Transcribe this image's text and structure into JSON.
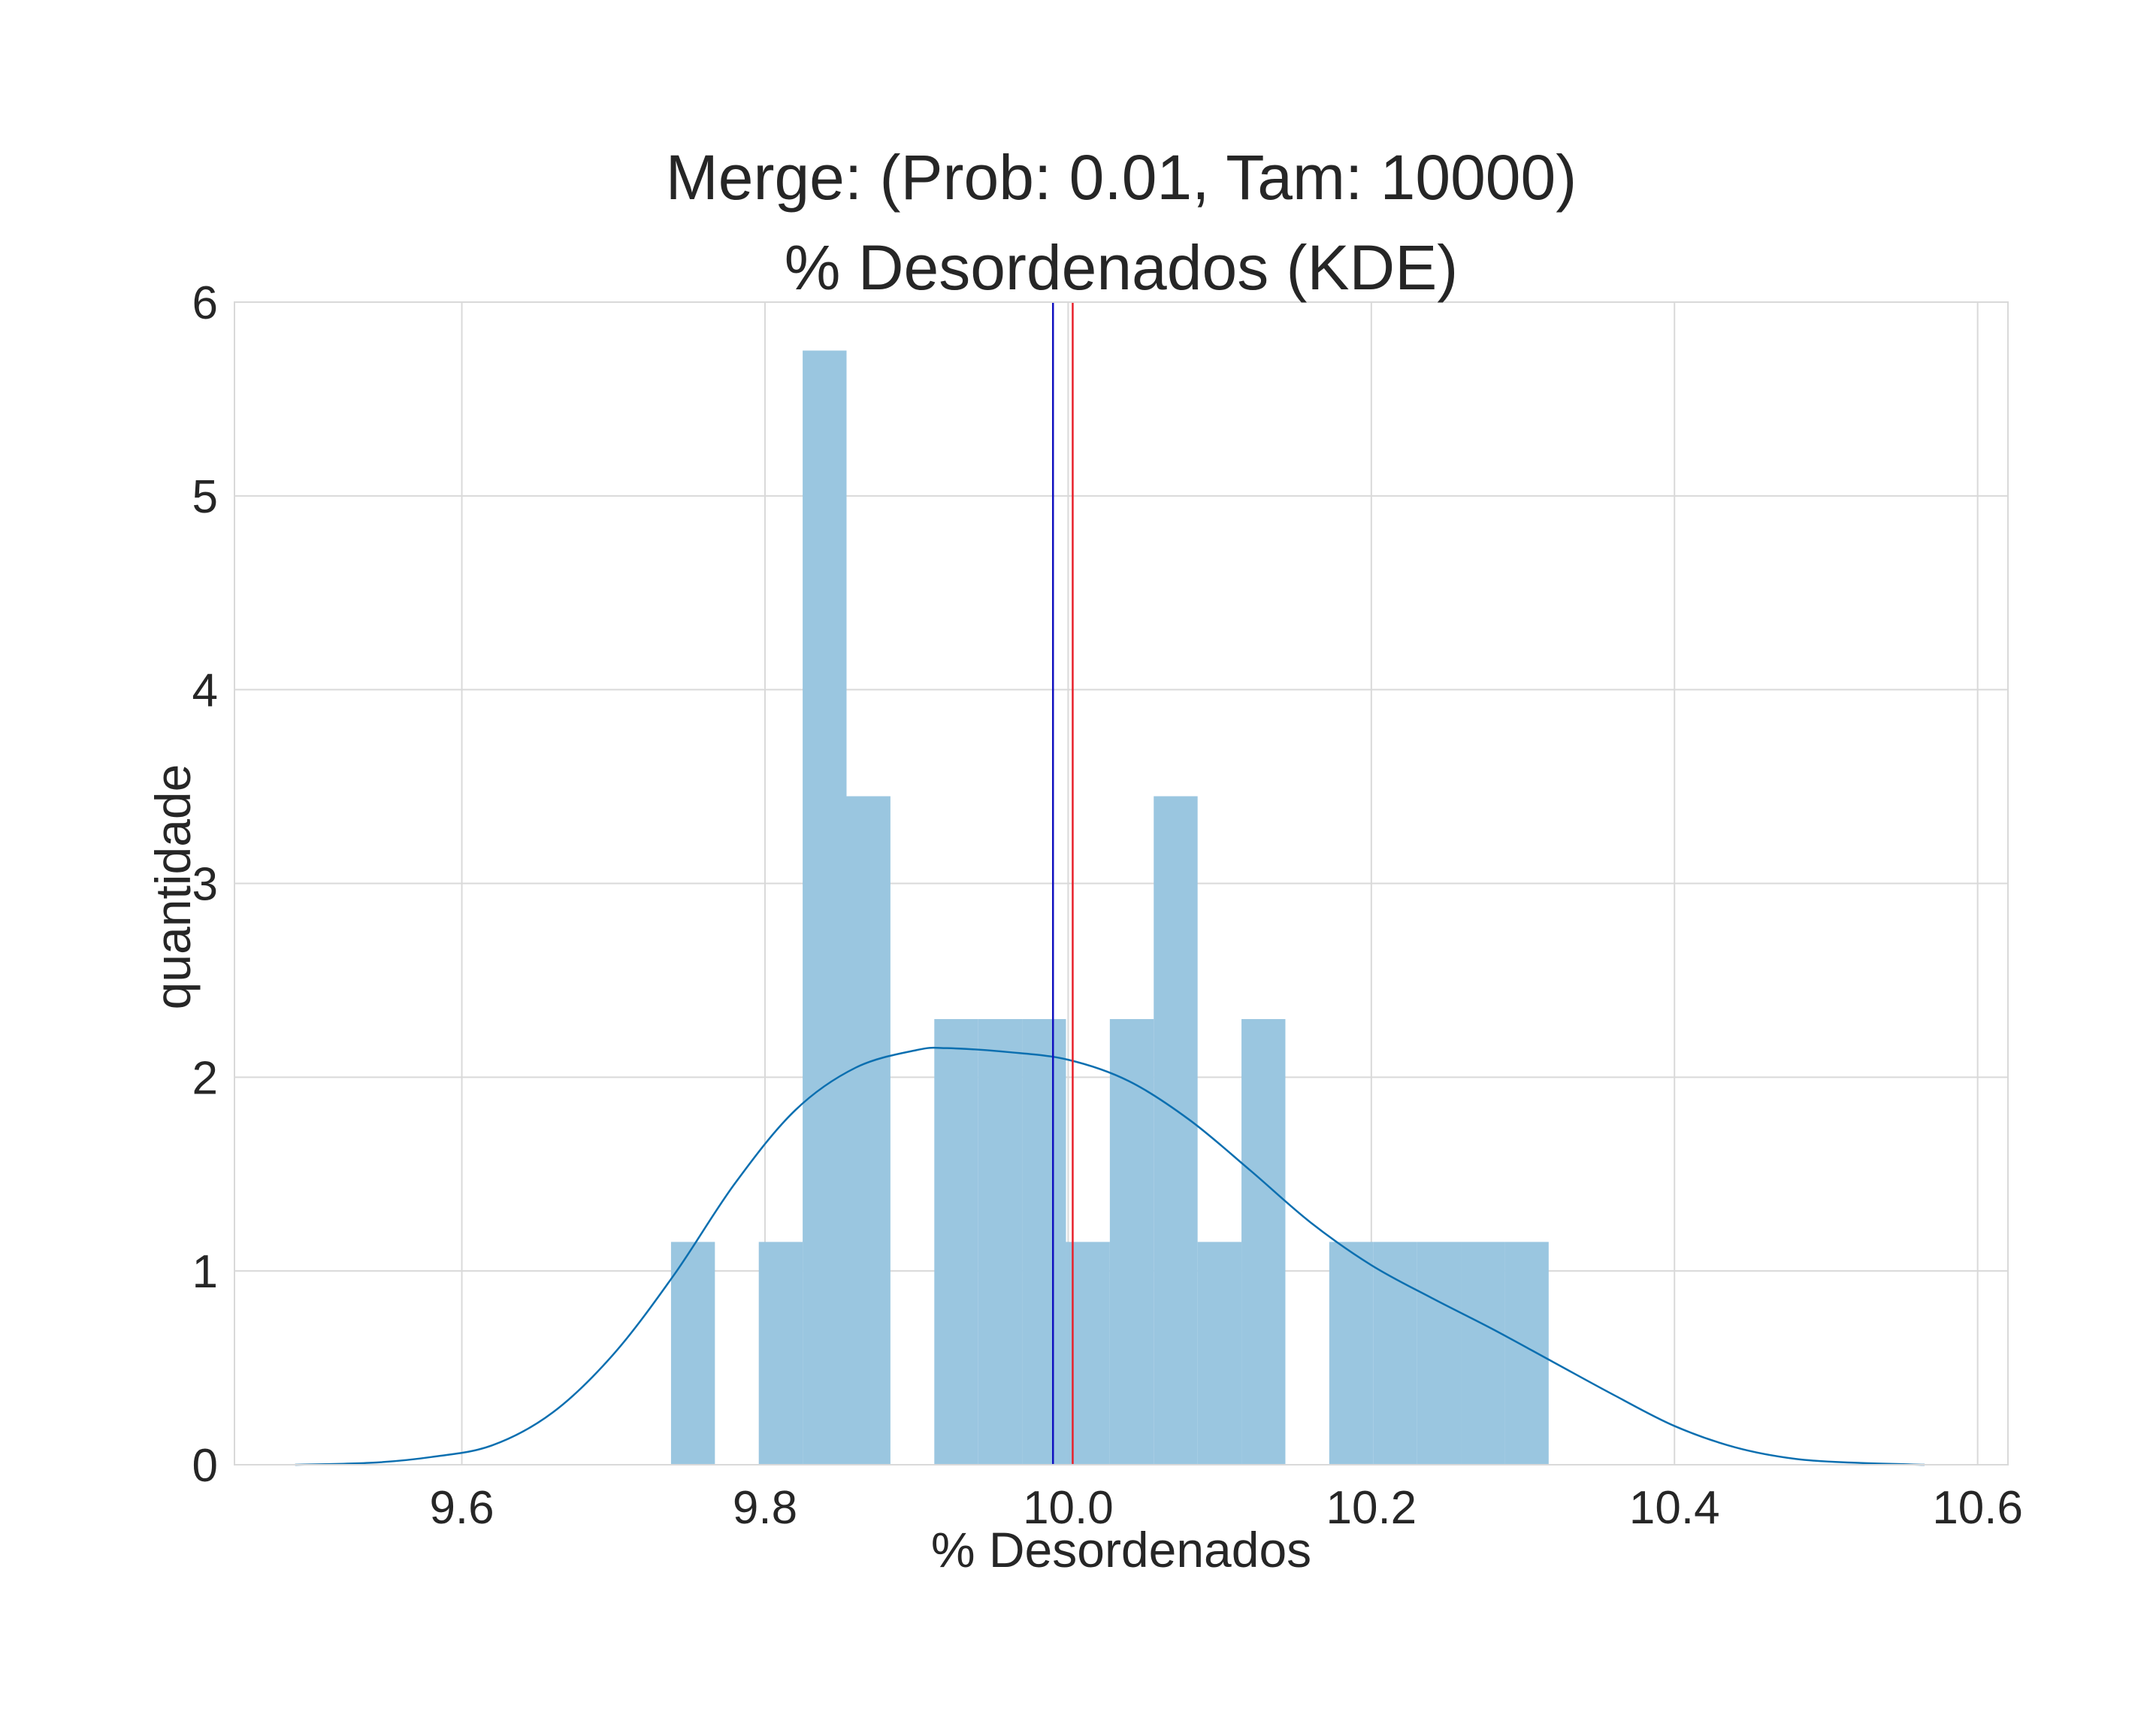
{
  "chart_data": {
    "type": "bar",
    "title": "Merge: (Prob: 0.01, Tam: 10000)",
    "subtitle": "% Desordenados (KDE)",
    "xlabel": "% Desordenados",
    "ylabel": "quantidade",
    "xlim": [
      9.45,
      10.62
    ],
    "ylim": [
      0,
      6
    ],
    "x_ticks": [
      9.6,
      9.8,
      10.0,
      10.2,
      10.4,
      10.6
    ],
    "x_tick_labels": [
      "9.6",
      "9.8",
      "10.0",
      "10.2",
      "10.4",
      "10.6"
    ],
    "y_ticks": [
      0,
      1,
      2,
      3,
      4,
      5,
      6
    ],
    "y_tick_labels": [
      "0",
      "1",
      "2",
      "3",
      "4",
      "5",
      "6"
    ],
    "grid": true,
    "histogram": {
      "bin_start": 9.738,
      "bin_width": 0.02895,
      "values": [
        1.15,
        0,
        1.15,
        5.75,
        3.45,
        0,
        2.3,
        2.3,
        2.3,
        1.15,
        2.3,
        3.45,
        1.15,
        2.3,
        0,
        1.15,
        1.15,
        1.15,
        1.15,
        1.15
      ],
      "color": "#9ac6e0"
    },
    "kde": {
      "color": "#0b6fb0",
      "x": [
        9.49,
        9.54,
        9.58,
        9.62,
        9.66,
        9.7,
        9.74,
        9.78,
        9.82,
        9.86,
        9.9,
        9.92,
        9.96,
        10.0,
        10.04,
        10.08,
        10.12,
        10.16,
        10.2,
        10.24,
        10.28,
        10.32,
        10.36,
        10.4,
        10.44,
        10.48,
        10.52,
        10.565
      ],
      "y": [
        0.0,
        0.01,
        0.04,
        0.1,
        0.27,
        0.57,
        0.98,
        1.45,
        1.83,
        2.05,
        2.14,
        2.15,
        2.13,
        2.09,
        1.98,
        1.78,
        1.52,
        1.25,
        1.03,
        0.86,
        0.7,
        0.53,
        0.36,
        0.2,
        0.09,
        0.03,
        0.01,
        0.0
      ]
    },
    "vertical_lines": [
      {
        "x": 9.99,
        "color": "#1010c0"
      },
      {
        "x": 10.003,
        "color": "#e8202a"
      }
    ]
  }
}
